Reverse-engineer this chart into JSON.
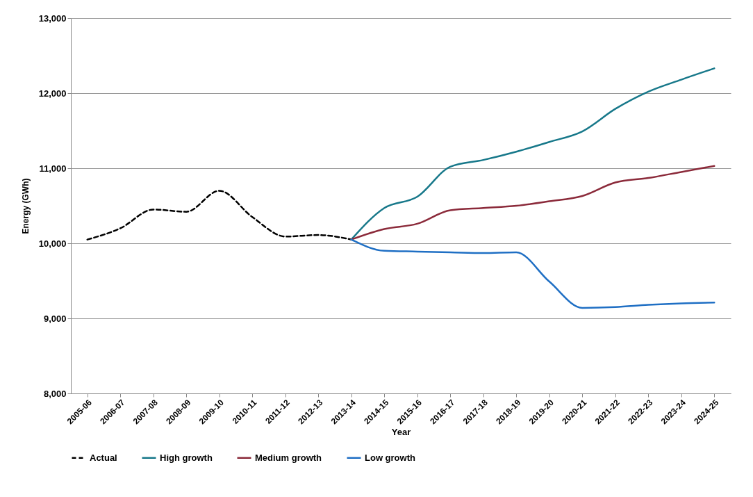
{
  "chart_data": {
    "type": "line",
    "xlabel": "Year",
    "ylabel": "Energy (GWh)",
    "categories": [
      "2005-06",
      "2006-07",
      "2007-08",
      "2008-09",
      "2009-10",
      "2010-11",
      "2011-12",
      "2012-13",
      "2013-14",
      "2014-15",
      "2015-16",
      "2016-17",
      "2017-18",
      "2018-19",
      "2019-20",
      "2020-21",
      "2021-22",
      "2022-23",
      "2023-24",
      "2024-25"
    ],
    "series": [
      {
        "name": "Actual",
        "color": "#000000",
        "line_style": "dashed",
        "values": [
          10050,
          10200,
          10450,
          10420,
          10700,
          10350,
          10090,
          10110,
          10050,
          null,
          null,
          null,
          null,
          null,
          null,
          null,
          null,
          null,
          null,
          null
        ]
      },
      {
        "name": "High growth",
        "color": "#17788a",
        "line_style": "solid",
        "values": [
          null,
          null,
          null,
          null,
          null,
          null,
          null,
          null,
          10050,
          10470,
          10620,
          11020,
          11110,
          11220,
          11350,
          11490,
          11790,
          12020,
          12180,
          12330
        ]
      },
      {
        "name": "Medium growth",
        "color": "#8b2a3a",
        "line_style": "solid",
        "values": [
          null,
          null,
          null,
          null,
          null,
          null,
          null,
          null,
          10050,
          10190,
          10260,
          10440,
          10470,
          10500,
          10560,
          10630,
          10810,
          10870,
          10950,
          11030
        ]
      },
      {
        "name": "Low growth",
        "color": "#1f6fc4",
        "line_style": "solid",
        "values": [
          null,
          null,
          null,
          null,
          null,
          null,
          null,
          null,
          10050,
          9900,
          9890,
          9880,
          9870,
          9880,
          9490,
          9140,
          9150,
          9180,
          9200,
          9210
        ]
      }
    ],
    "ylim": [
      8000,
      13000
    ],
    "yticks": [
      {
        "value": 8000,
        "label": "8,000"
      },
      {
        "value": 9000,
        "label": "9,000"
      },
      {
        "value": 10000,
        "label": "10,000"
      },
      {
        "value": 11000,
        "label": "11,000"
      },
      {
        "value": 12000,
        "label": "12,000"
      },
      {
        "value": 13000,
        "label": "13,000"
      }
    ],
    "grid": "y",
    "legend": "bottom"
  }
}
